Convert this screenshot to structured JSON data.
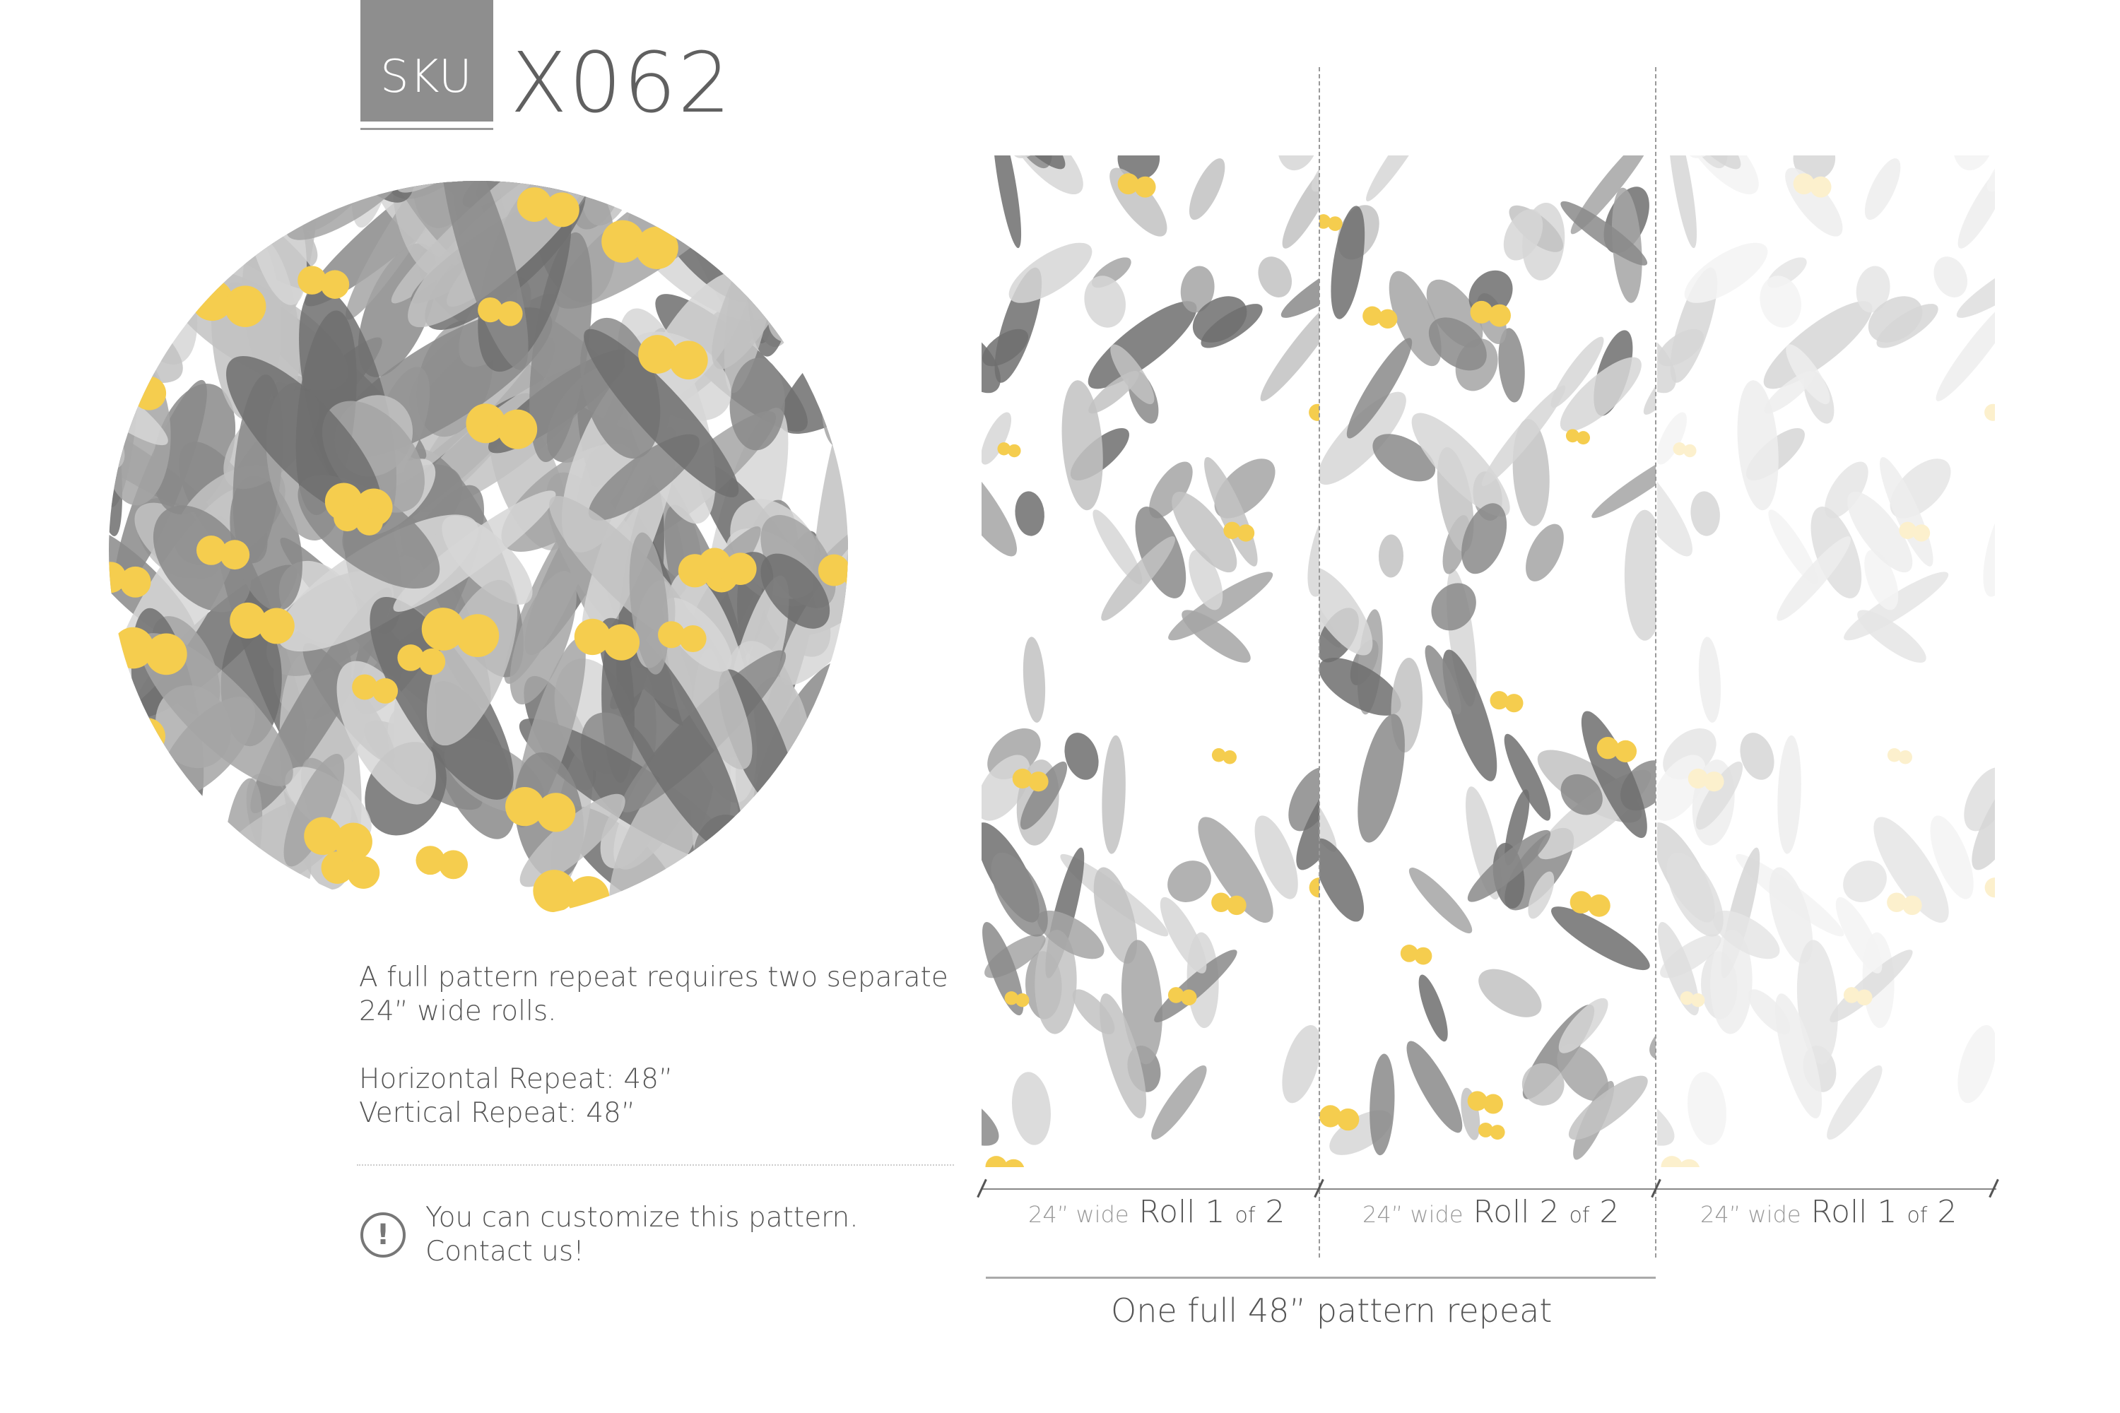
{
  "header": {
    "sku_label": "SKU",
    "sku_code": "X062"
  },
  "colors": {
    "leaf_dark": "#777777",
    "leaf_light": "#bdbdbd",
    "berry": "#f5cd4e",
    "sku_box": "#8e8e8e"
  },
  "description": {
    "line1": "A full pattern repeat requires two separate",
    "line2": "24” wide rolls.",
    "horizontal": "Horizontal Repeat: 48”",
    "vertical": "Vertical Repeat: 48”"
  },
  "customize": {
    "icon": "exclamation-circle-icon",
    "line1": "You can customize this pattern.",
    "line2": "Contact us!"
  },
  "rolls": [
    {
      "width": "24” wide",
      "roll": "Roll 1",
      "of": "of",
      "total": "2"
    },
    {
      "width": "24” wide",
      "roll": "Roll 2",
      "of": "of",
      "total": "2"
    },
    {
      "width": "24” wide",
      "roll": "Roll 1",
      "of": "of",
      "total": "2"
    }
  ],
  "repeat_caption": "One full 48” pattern repeat"
}
